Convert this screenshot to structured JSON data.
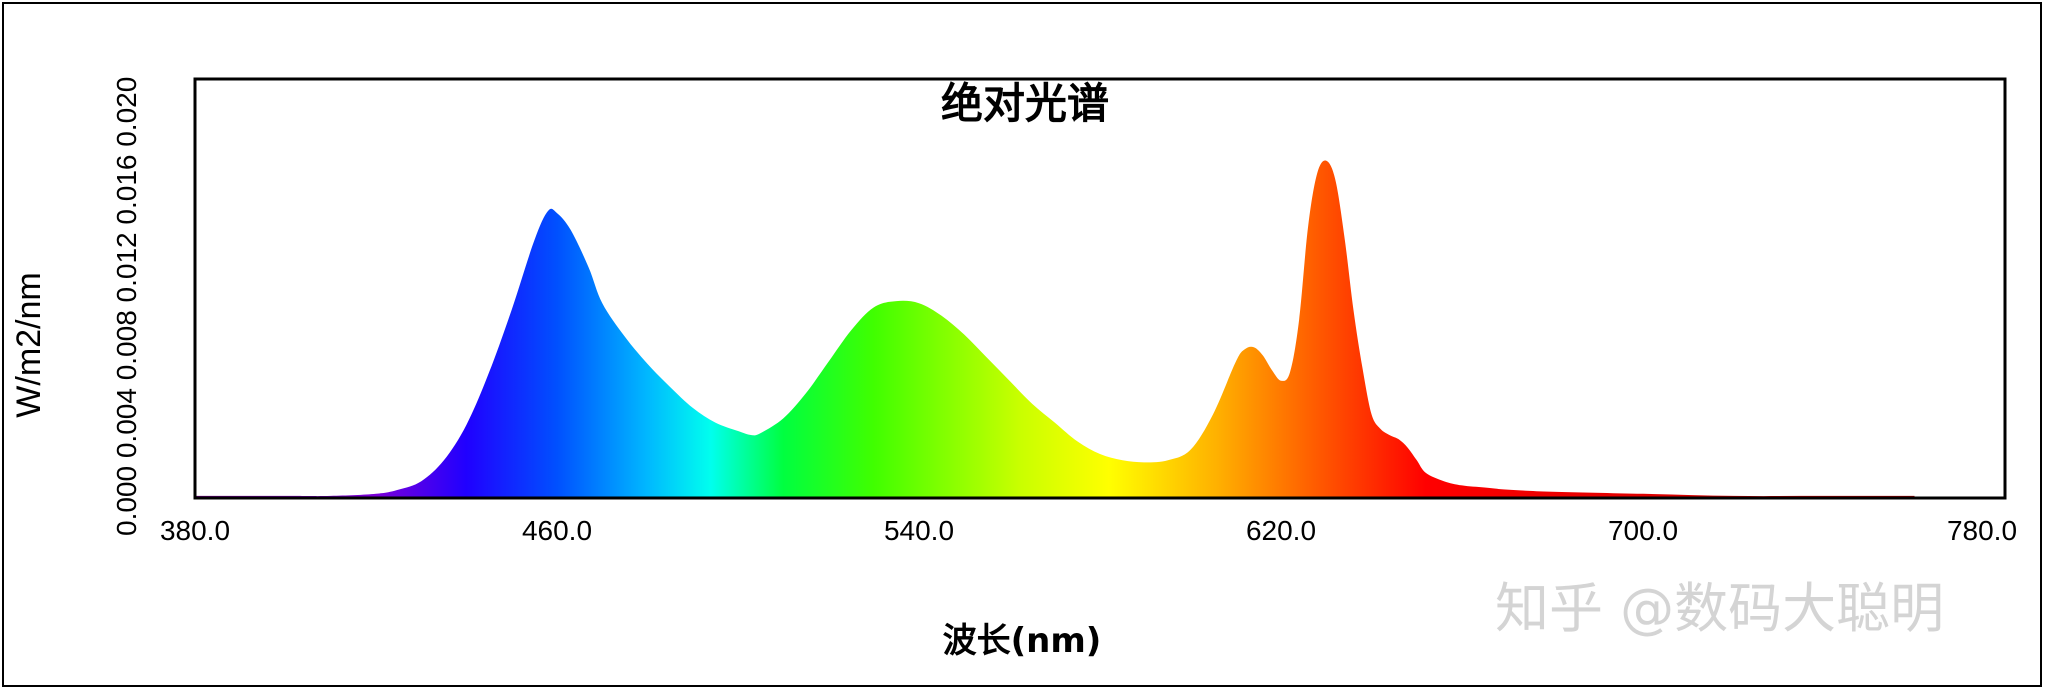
{
  "chart_data": {
    "type": "area",
    "title": "绝对光谱",
    "xlabel": "波长(nm)",
    "ylabel": "W/m2/nm",
    "xlim": [
      380.0,
      780.0
    ],
    "ylim": [
      0.0,
      0.02
    ],
    "xticks": [
      "380.0",
      "460.0",
      "540.0",
      "620.0",
      "700.0",
      "780.0"
    ],
    "yticks_text": "0.000 0.004 0.008 0.012 0.016 0.020",
    "x": [
      380,
      400,
      410,
      420,
      425,
      430,
      435,
      440,
      445,
      450,
      455,
      458,
      460,
      463,
      467,
      470,
      475,
      480,
      485,
      490,
      495,
      500,
      503,
      505,
      510,
      515,
      520,
      525,
      530,
      535,
      540,
      545,
      550,
      555,
      560,
      565,
      570,
      575,
      580,
      585,
      590,
      595,
      600,
      605,
      610,
      612,
      614,
      616,
      618,
      620,
      622,
      624,
      626,
      628,
      630,
      632,
      634,
      636,
      638,
      640,
      642,
      644,
      646,
      648,
      650,
      652,
      656,
      660,
      665,
      670,
      680,
      700,
      720,
      740,
      760
    ],
    "values": [
      0.0001,
      0.0001,
      0.0001,
      0.0002,
      0.0004,
      0.0008,
      0.0018,
      0.0035,
      0.006,
      0.009,
      0.0123,
      0.0137,
      0.0136,
      0.0128,
      0.011,
      0.0093,
      0.0077,
      0.0064,
      0.0053,
      0.0043,
      0.0036,
      0.0032,
      0.003,
      0.0031,
      0.0038,
      0.005,
      0.0065,
      0.008,
      0.0091,
      0.0094,
      0.0093,
      0.0087,
      0.0078,
      0.0067,
      0.0056,
      0.0045,
      0.0036,
      0.0027,
      0.0021,
      0.0018,
      0.0017,
      0.0018,
      0.0023,
      0.004,
      0.0065,
      0.0071,
      0.0072,
      0.0068,
      0.0061,
      0.0056,
      0.006,
      0.0085,
      0.013,
      0.0155,
      0.0161,
      0.0152,
      0.0125,
      0.009,
      0.0062,
      0.004,
      0.0033,
      0.003,
      0.0028,
      0.0024,
      0.0018,
      0.0012,
      0.0008,
      0.0006,
      0.0005,
      0.0004,
      0.0003,
      0.0002,
      0.0001,
      0.0001,
      0.0001
    ],
    "fill": "visible-spectrum gradient",
    "grid": false,
    "legend": "none"
  },
  "watermark": "知乎 @数码大聪明"
}
